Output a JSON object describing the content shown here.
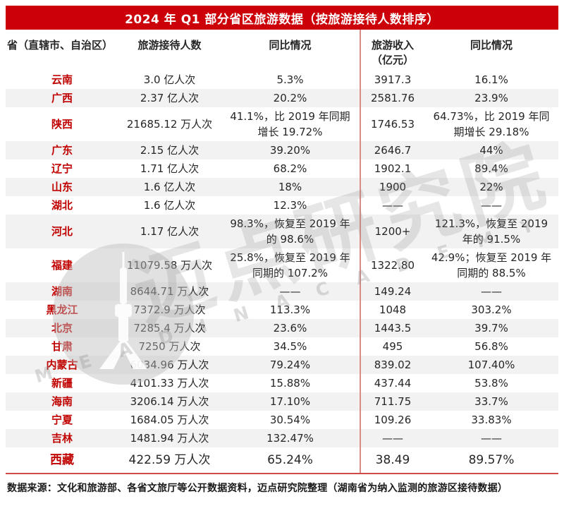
{
  "title": "2024 年 Q1 部分省区旅游数据（按旅游接待人数排序）",
  "footer": "数据来源：文化和旅游部、各省文旅厅等公开数据资料，迈点研究院整理（湖南省为纳入监测的旅游区接待数据）",
  "watermark": {
    "cn": "迈点研究院",
    "en": "M E A D I N  A C A D E M Y"
  },
  "colors": {
    "title_bar": "#cc0008",
    "province_text": "#c00000",
    "alt_row": "#f2f2f2",
    "column_divider": "#d98c86",
    "bottom_rule": "#cf4a47"
  },
  "chart_data": {
    "type": "table",
    "title": "2024 年 Q1 部分省区旅游数据（按旅游接待人数排序）",
    "columns": {
      "province": "省（直辖市、自治区）",
      "visitors": "旅游接待人数",
      "visitors_yoy": "同比情况",
      "revenue_l1": "旅游收入",
      "revenue_l2": "（亿元）",
      "revenue_yoy": "同比情况"
    },
    "rows": [
      {
        "province": "云南",
        "visitors": "3.0 亿人次",
        "visitors_yoy": "5.3%",
        "revenue": "3917.3",
        "revenue_yoy": "16.1%"
      },
      {
        "province": "广西",
        "visitors": "2.37 亿人次",
        "visitors_yoy": "20.2%",
        "revenue": "2581.76",
        "revenue_yoy": "23.9%"
      },
      {
        "province": "陕西",
        "visitors": "21685.12 万人次",
        "visitors_yoy": "41.1%，比 2019 年同期增长 19.72%",
        "revenue": "1746.53",
        "revenue_yoy": "64.73%，比 2019 年同期增长 29.18%"
      },
      {
        "province": "广东",
        "visitors": "2.15 亿人次",
        "visitors_yoy": "39.20%",
        "revenue": "2646.7",
        "revenue_yoy": "44%"
      },
      {
        "province": "辽宁",
        "visitors": "1.71 亿人次",
        "visitors_yoy": "68.2%",
        "revenue": "1902.1",
        "revenue_yoy": "89.4%"
      },
      {
        "province": "山东",
        "visitors": "1.6 亿人次",
        "visitors_yoy": "18%",
        "revenue": "1900",
        "revenue_yoy": "22%"
      },
      {
        "province": "湖北",
        "visitors": "1.6 亿人次",
        "visitors_yoy": "12.3%",
        "revenue": "——",
        "revenue_yoy": "——"
      },
      {
        "province": "河北",
        "visitors": "1.17 亿人次",
        "visitors_yoy": "98.3%，恢复至 2019 年的 98.6%",
        "revenue": "1200+",
        "revenue_yoy": "121.3%，恢复至 2019 年的 91.5%"
      },
      {
        "province": "福建",
        "visitors": "11079.58 万人次",
        "visitors_yoy": "25.8%，恢复至 2019 年同期的 107.2%",
        "revenue": "1322.80",
        "revenue_yoy": "42.9%；恢复至 2019 年同期的 88.5%"
      },
      {
        "province": "湖南",
        "visitors": "8644.71 万人次",
        "visitors_yoy": "——",
        "revenue": "149.24",
        "revenue_yoy": "——"
      },
      {
        "province": "黑龙江",
        "visitors": "7372.9 万人次",
        "visitors_yoy": "113.3%",
        "revenue": "1048",
        "revenue_yoy": "303.2%"
      },
      {
        "province": "北京",
        "visitors": "7285.4 万人次",
        "visitors_yoy": "23.6%",
        "revenue": "1443.5",
        "revenue_yoy": "39.7%"
      },
      {
        "province": "甘肃",
        "visitors": "7250 万人次",
        "visitors_yoy": "34.5%",
        "revenue": "495",
        "revenue_yoy": "56.8%"
      },
      {
        "province": "内蒙古",
        "visitors": "6034.96 万人次",
        "visitors_yoy": "79.24%",
        "revenue": "839.02",
        "revenue_yoy": "107.40%"
      },
      {
        "province": "新疆",
        "visitors": "4101.33 万人次",
        "visitors_yoy": "15.88%",
        "revenue": "437.44",
        "revenue_yoy": "53.8%"
      },
      {
        "province": "海南",
        "visitors": "3206.14 万人次",
        "visitors_yoy": "17.10%",
        "revenue": "711.75",
        "revenue_yoy": "33.7%"
      },
      {
        "province": "宁夏",
        "visitors": "1684.05 万人次",
        "visitors_yoy": "30.54%",
        "revenue": "109.26",
        "revenue_yoy": "33.83%"
      },
      {
        "province": "吉林",
        "visitors": "1481.94 万人次",
        "visitors_yoy": "132.47%",
        "revenue": "——",
        "revenue_yoy": "——"
      },
      {
        "province": "西藏",
        "visitors": "422.59 万人次",
        "visitors_yoy": "65.24%",
        "revenue": "38.49",
        "revenue_yoy": "89.57%"
      }
    ]
  }
}
